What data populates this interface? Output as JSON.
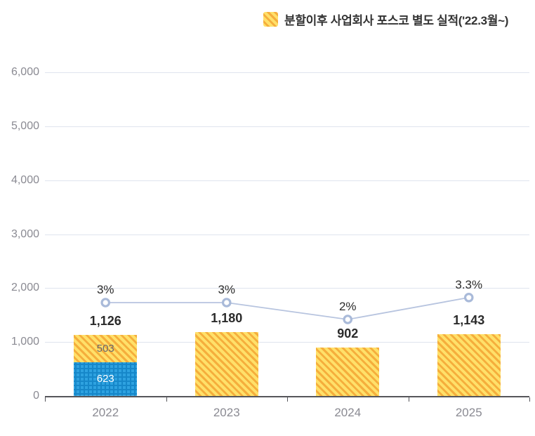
{
  "legend": {
    "label": "분할이후 사업회사 포스코 별도 실적('22.3월~)"
  },
  "colors": {
    "bar_yellow_base": "#FFE069",
    "bar_yellow_stripe": "#F5AE3C",
    "bar_blue_base": "#2EA2E0",
    "bar_blue_pattern": "#1687C9",
    "trend_line": "#B7C4DF",
    "marker_stroke": "#A9BAD9",
    "grid_line": "#DFE4EE",
    "axis_line": "#55555A",
    "axis_text": "#8A8A92",
    "label_dark": "#2B2B2B",
    "segment_label_on_yellow": "#69696E",
    "segment_label_on_blue": "#FFFFFF"
  },
  "chart_data": {
    "type": "bar",
    "title": "",
    "categories": [
      "2022",
      "2023",
      "2024",
      "2025"
    ],
    "series": [
      {
        "name": "lower-segment-blue-plus-pattern",
        "pattern": "plus",
        "values": [
          623,
          null,
          null,
          null
        ],
        "data_labels": [
          "623",
          "",
          "",
          ""
        ]
      },
      {
        "name": "분할이후 사업회사 포스코 별도 실적('22.3월~)",
        "pattern": "diagonal-hatch",
        "values": [
          503,
          1180,
          902,
          1143
        ],
        "data_labels": [
          "503",
          "",
          "",
          ""
        ]
      }
    ],
    "totals": {
      "values": [
        1126,
        1180,
        902,
        1143
      ],
      "labels": [
        "1,126",
        "1,180",
        "902",
        "1,143"
      ]
    },
    "line_series": {
      "name": "percent-trend",
      "values": [
        3,
        3,
        2,
        3.3
      ],
      "labels": [
        "3%",
        "3%",
        "2%",
        "3.3%"
      ]
    },
    "y_axis": {
      "min": 0,
      "max": 6000,
      "tick_step": 1000,
      "tick_labels": [
        "0",
        "1,000",
        "2,000",
        "3,000",
        "4,000",
        "5,000",
        "6,000"
      ]
    },
    "x_axis": {
      "tick_labels": [
        "2022",
        "2023",
        "2024",
        "2025"
      ]
    },
    "grid": true,
    "legend_position": "top-right"
  }
}
